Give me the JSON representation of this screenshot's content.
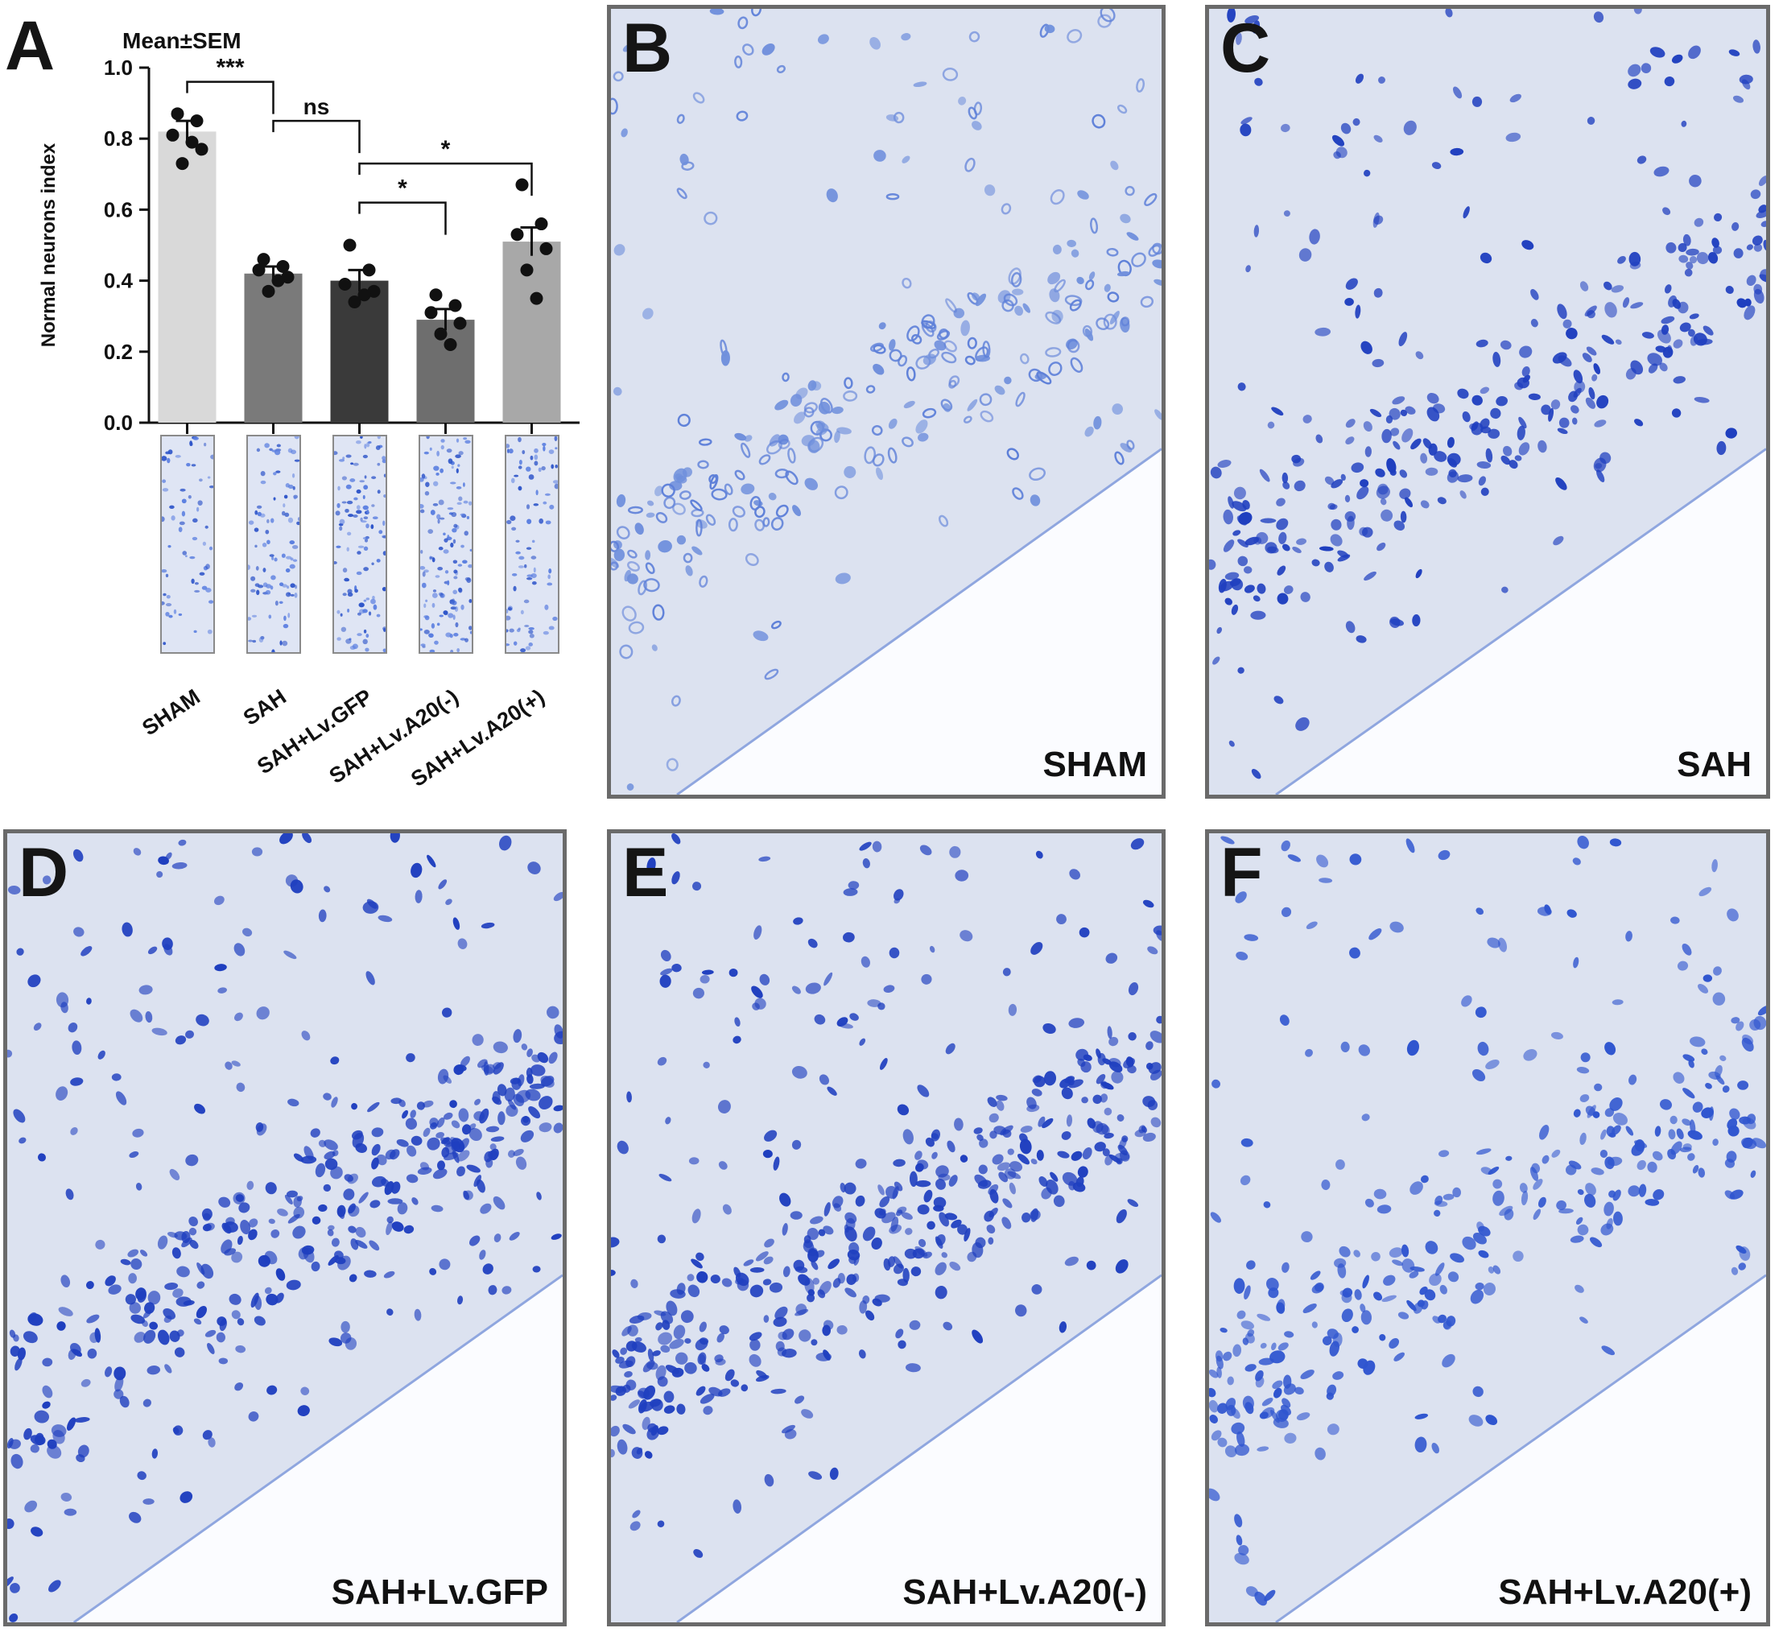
{
  "panels": {
    "A": "A",
    "B": "B",
    "C": "C",
    "D": "D",
    "E": "E",
    "F": "F"
  },
  "micrographs": [
    {
      "id": "B",
      "caption": "SHAM",
      "density": "low",
      "stain": "light"
    },
    {
      "id": "C",
      "caption": "SAH",
      "density": "medium",
      "stain": "dark"
    },
    {
      "id": "D",
      "caption": "SAH+Lv.GFP",
      "density": "high",
      "stain": "dark"
    },
    {
      "id": "E",
      "caption": "SAH+Lv.A20(-)",
      "density": "high",
      "stain": "dark"
    },
    {
      "id": "F",
      "caption": "SAH+Lv.A20(+)",
      "density": "medium",
      "stain": "medium"
    }
  ],
  "chart_data": {
    "type": "bar",
    "title": "Mean±SEM",
    "xlabel": "",
    "ylabel": "Normal neurons index",
    "ylim": [
      0,
      1.0
    ],
    "yticks": [
      "0.0",
      "0.2",
      "0.4",
      "0.6",
      "0.8",
      "1.0"
    ],
    "categories": [
      "SHAM",
      "SAH",
      "SAH+Lv.GFP",
      "SAH+Lv.A20(-)",
      "SAH+Lv.A20(+)"
    ],
    "values": [
      0.82,
      0.42,
      0.4,
      0.29,
      0.51
    ],
    "errors": [
      0.03,
      0.02,
      0.03,
      0.03,
      0.04
    ],
    "bar_colors": [
      "#d9d9d9",
      "#7a7a7a",
      "#3a3a3a",
      "#6e6e6e",
      "#a8a8a8"
    ],
    "points": [
      [
        0.87,
        0.85,
        0.81,
        0.77,
        0.73,
        0.79
      ],
      [
        0.46,
        0.44,
        0.43,
        0.41,
        0.37,
        0.4
      ],
      [
        0.5,
        0.43,
        0.39,
        0.37,
        0.34,
        0.36
      ],
      [
        0.36,
        0.33,
        0.31,
        0.28,
        0.25,
        0.22
      ],
      [
        0.67,
        0.56,
        0.53,
        0.49,
        0.43,
        0.35
      ]
    ],
    "significance": [
      {
        "from": 0,
        "to": 1,
        "label": "***"
      },
      {
        "from": 1,
        "to": 2,
        "label": "ns"
      },
      {
        "from": 2,
        "to": 3,
        "label": "*"
      },
      {
        "from": 2,
        "to": 4,
        "label": "*"
      }
    ]
  }
}
